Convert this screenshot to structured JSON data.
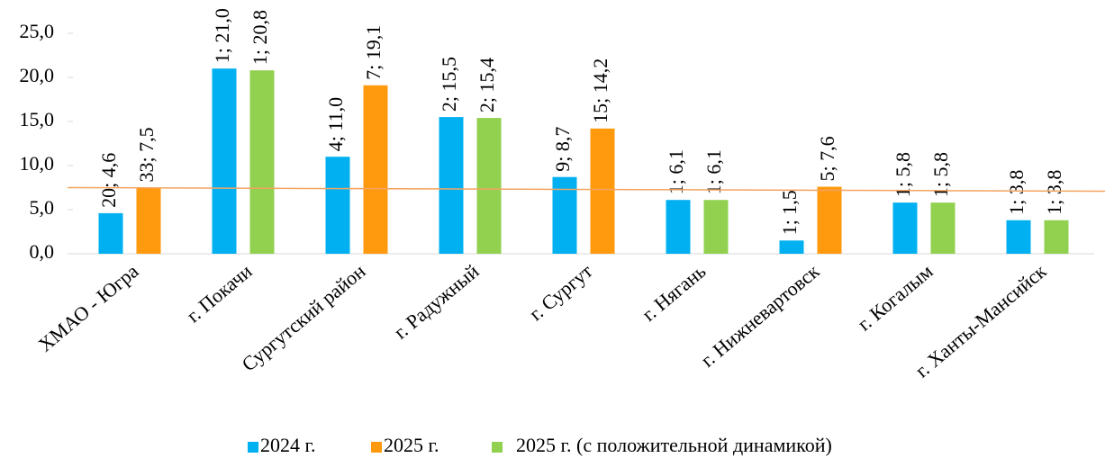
{
  "chart_data": {
    "type": "bar",
    "categories": [
      "ХМАО - Югра",
      "г. Покачи",
      "Сургутский район",
      "г. Радужный",
      "г. Сургут",
      "г. Нягань",
      "г. Нижневартовск",
      "г. Когалым",
      "г. Ханты-Мансийск"
    ],
    "series": [
      {
        "name": "2024 г.",
        "color": "#00b0f0",
        "values": [
          4.6,
          21.0,
          11.0,
          15.5,
          8.7,
          6.1,
          1.5,
          5.8,
          3.8
        ],
        "value_labels": [
          "20; 4,6",
          "1; 21,0",
          "4; 11,0",
          "2; 15,5",
          "9; 8,7",
          "1; 6,1",
          "1; 1,5",
          "1; 5,8",
          "1; 3,8"
        ]
      },
      {
        "name": "2025 г.",
        "color": "#ff9a0f",
        "values": [
          7.5,
          null,
          19.1,
          null,
          14.2,
          null,
          7.6,
          null,
          null
        ],
        "value_labels": [
          "33; 7,5",
          null,
          "7; 19,1",
          null,
          "15; 14,2",
          null,
          "5; 7,6",
          null,
          null
        ]
      },
      {
        "name": "2025 г. (с положительной динамикой)",
        "color": "#92d050",
        "values": [
          null,
          20.8,
          null,
          15.4,
          null,
          6.1,
          null,
          5.8,
          3.8
        ],
        "value_labels": [
          null,
          "1; 20,8",
          null,
          "2; 15,4",
          null,
          "1; 6,1",
          null,
          "1; 5,8",
          "1; 3,8"
        ]
      }
    ],
    "ylim": [
      0,
      25
    ],
    "yticks": [
      {
        "value": 0,
        "label": "0,0"
      },
      {
        "value": 5,
        "label": "5,0"
      },
      {
        "value": 10,
        "label": "10,0"
      },
      {
        "value": 15,
        "label": "15,0"
      },
      {
        "value": 20,
        "label": "20,0"
      },
      {
        "value": 25,
        "label": "25,0"
      }
    ],
    "legend": "bottom"
  }
}
